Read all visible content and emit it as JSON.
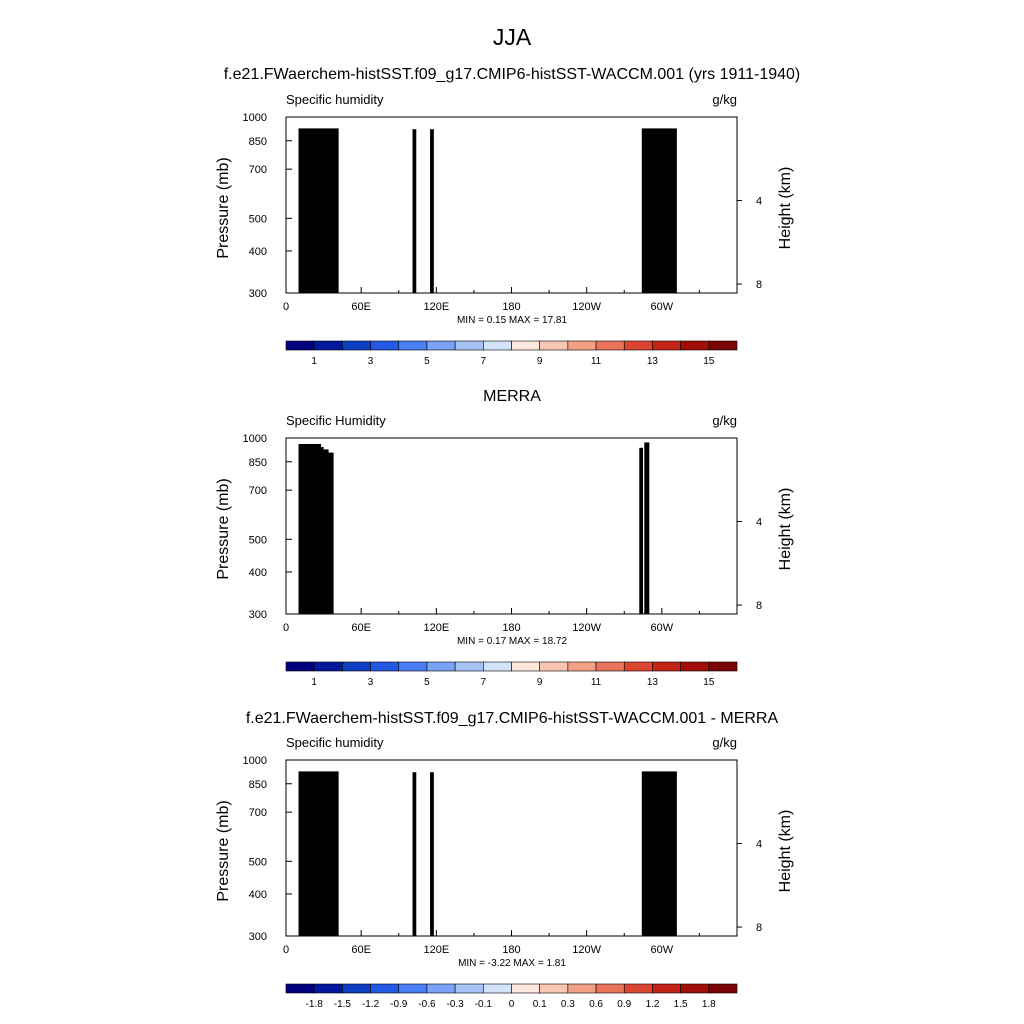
{
  "figure": {
    "title": "JJA",
    "colors": {
      "abs_scale": [
        "#00007f",
        "#00199c",
        "#0d3fc4",
        "#2459e6",
        "#4a7ef5",
        "#7aa3f7",
        "#a7c3f5",
        "#d3e3f9",
        "#fde6dc",
        "#f8c6b2",
        "#f2a185",
        "#ea735b",
        "#dc4530",
        "#c42415",
        "#a20e07",
        "#7a0403"
      ],
      "diff_scale": [
        "#00007f",
        "#00199c",
        "#0d3fc4",
        "#2459e6",
        "#4a7ef5",
        "#7aa3f7",
        "#a7c3f5",
        "#d3e3f9",
        "#fde6dc",
        "#f8c6b2",
        "#f2a185",
        "#ea735b",
        "#dc4530",
        "#c42415",
        "#a20e07",
        "#7a0403"
      ],
      "terrain": "#000000"
    }
  },
  "chart_data": [
    {
      "type": "heatmap",
      "title": "f.e21.FWaerchem-histSST.f09_g17.CMIP6-histSST-WACCM.001 (yrs 1911-1940)",
      "left_label": "Specific humidity",
      "right_label": "g/kg",
      "ylabel": "Pressure (mb)",
      "y2label": "Height (km)",
      "x_ticks": [
        "0",
        "60E",
        "120E",
        "180",
        "120W",
        "60W"
      ],
      "y_ticks": [
        "300",
        "400",
        "500",
        "700",
        "850",
        "1000"
      ],
      "y2_ticks": [
        "8",
        "4"
      ],
      "stats": "MIN =  0.15  MAX =  17.81",
      "colorbar_labels": [
        "1",
        "3",
        "5",
        "7",
        "9",
        "11",
        "13",
        "15"
      ],
      "colorbar_levels": [
        0,
        1,
        2,
        3,
        4,
        5,
        6,
        7,
        8,
        9,
        10,
        11,
        12,
        13,
        14,
        15
      ],
      "xlim": [
        0,
        360
      ],
      "plim": [
        300,
        1000
      ],
      "min": 0.15,
      "max": 17.81,
      "terrain": [
        {
          "x0": 10,
          "x1": 42,
          "p": 925
        },
        {
          "x0": 28,
          "x1": 36,
          "p": 870
        },
        {
          "x0": 101,
          "x1": 104,
          "p": 920
        },
        {
          "x0": 115,
          "x1": 118,
          "p": 920
        },
        {
          "x0": 284,
          "x1": 312,
          "p": 925
        }
      ]
    },
    {
      "type": "heatmap",
      "title": "MERRA",
      "left_label": "Specific Humidity",
      "right_label": "g/kg",
      "ylabel": "Pressure (mb)",
      "y2label": "Height (km)",
      "x_ticks": [
        "0",
        "60E",
        "120E",
        "180",
        "120W",
        "60W"
      ],
      "y_ticks": [
        "300",
        "400",
        "500",
        "700",
        "850",
        "1000"
      ],
      "y2_ticks": [
        "8",
        "4"
      ],
      "stats": "MIN =  0.17  MAX =  18.72",
      "colorbar_labels": [
        "1",
        "3",
        "5",
        "7",
        "9",
        "11",
        "13",
        "15"
      ],
      "colorbar_levels": [
        0,
        1,
        2,
        3,
        4,
        5,
        6,
        7,
        8,
        9,
        10,
        11,
        12,
        13,
        14,
        15
      ],
      "xlim": [
        0,
        360
      ],
      "plim": [
        300,
        1000
      ],
      "min": 0.17,
      "max": 18.72,
      "terrain": [
        {
          "x0": 10,
          "x1": 28,
          "p": 960
        },
        {
          "x0": 22,
          "x1": 30,
          "p": 940
        },
        {
          "x0": 28,
          "x1": 34,
          "p": 925
        },
        {
          "x0": 33,
          "x1": 38,
          "p": 905
        },
        {
          "x0": 282,
          "x1": 285,
          "p": 935
        },
        {
          "x0": 286,
          "x1": 290,
          "p": 970
        }
      ]
    },
    {
      "type": "heatmap",
      "title": "f.e21.FWaerchem-histSST.f09_g17.CMIP6-histSST-WACCM.001 - MERRA",
      "left_label": "Specific humidity",
      "right_label": "g/kg",
      "ylabel": "Pressure (mb)",
      "y2label": "Height (km)",
      "x_ticks": [
        "0",
        "60E",
        "120E",
        "180",
        "120W",
        "60W"
      ],
      "y_ticks": [
        "300",
        "400",
        "500",
        "700",
        "850",
        "1000"
      ],
      "y2_ticks": [
        "8",
        "4"
      ],
      "stats": "MIN =  -3.22  MAX =   1.81",
      "colorbar_labels": [
        "-1.8",
        "-1.5",
        "-1.2",
        "-0.9",
        "-0.6",
        "-0.3",
        "-0.1",
        "0",
        "0.1",
        "0.3",
        "0.6",
        "0.9",
        "1.2",
        "1.5",
        "1.8"
      ],
      "colorbar_levels": [
        -2.1,
        -1.8,
        -1.5,
        -1.2,
        -0.9,
        -0.6,
        -0.3,
        -0.1,
        0,
        0.1,
        0.3,
        0.6,
        0.9,
        1.2,
        1.5,
        1.8
      ],
      "xlim": [
        0,
        360
      ],
      "plim": [
        300,
        1000
      ],
      "min": -3.22,
      "max": 1.81,
      "terrain": [
        {
          "x0": 10,
          "x1": 42,
          "p": 925
        },
        {
          "x0": 28,
          "x1": 36,
          "p": 870
        },
        {
          "x0": 101,
          "x1": 104,
          "p": 920
        },
        {
          "x0": 115,
          "x1": 118,
          "p": 920
        },
        {
          "x0": 284,
          "x1": 312,
          "p": 925
        }
      ]
    }
  ]
}
